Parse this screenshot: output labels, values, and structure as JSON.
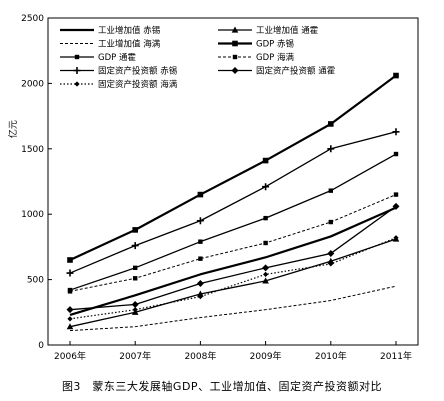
{
  "caption": "图3　蒙东三大发展轴GDP、工业增加值、固定资产投资额对比",
  "chart_data": {
    "type": "line",
    "title": "",
    "xlabel": "",
    "ylabel": "亿元",
    "ylim": [
      0,
      2500
    ],
    "yticks": [
      0,
      500,
      1000,
      1500,
      2000,
      2500
    ],
    "categories": [
      "2006年",
      "2007年",
      "2008年",
      "2009年",
      "2010年",
      "2011年"
    ],
    "grid": false,
    "legend_position": "top-left",
    "series": [
      {
        "name": "工业增加值 赤锡",
        "values": [
          230,
          380,
          540,
          670,
          830,
          1050
        ],
        "line": "solid-thick",
        "marker": "none"
      },
      {
        "name": "工业增加值 通霍",
        "values": [
          140,
          250,
          390,
          490,
          640,
          810
        ],
        "line": "solid",
        "marker": "triangle"
      },
      {
        "name": "工业增加值 海满",
        "values": [
          110,
          140,
          210,
          270,
          340,
          450
        ],
        "line": "dashed",
        "marker": "none"
      },
      {
        "name": "GDP 赤锡",
        "values": [
          650,
          880,
          1150,
          1410,
          1690,
          2060
        ],
        "line": "solid-thick",
        "marker": "square"
      },
      {
        "name": "GDP 通霍",
        "values": [
          420,
          590,
          790,
          970,
          1180,
          1460
        ],
        "line": "solid",
        "marker": "square-small"
      },
      {
        "name": "GDP 海满",
        "values": [
          410,
          510,
          660,
          780,
          940,
          1150
        ],
        "line": "dashed",
        "marker": "square-small"
      },
      {
        "name": "固定资产投资额 赤锡",
        "values": [
          550,
          760,
          950,
          1210,
          1500,
          1630
        ],
        "line": "solid",
        "marker": "plus"
      },
      {
        "name": "固定资产投资额 通霍",
        "values": [
          270,
          310,
          470,
          590,
          700,
          1060
        ],
        "line": "solid",
        "marker": "diamond"
      },
      {
        "name": "固定资产投资额 海满",
        "values": [
          200,
          270,
          370,
          540,
          620,
          820
        ],
        "line": "dotted",
        "marker": "diamond-small"
      }
    ]
  }
}
